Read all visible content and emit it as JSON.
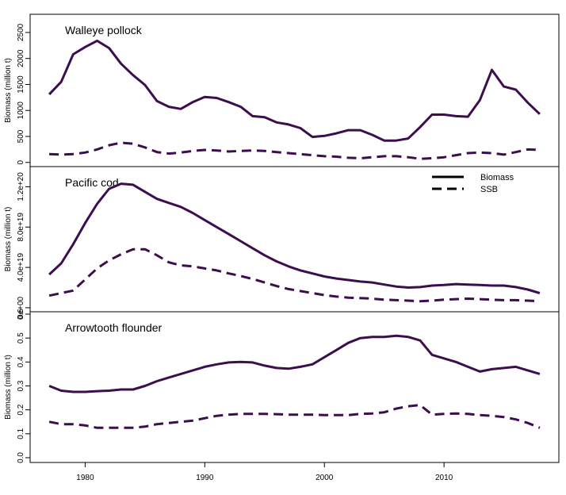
{
  "colors": {
    "line": "#3d0e4f",
    "frame": "#000000"
  },
  "legend": {
    "position": "top-right",
    "entries": [
      "Biomass",
      "SSB"
    ]
  },
  "chart_data": [
    {
      "type": "line",
      "title": "Walleye pollock",
      "ylabel": "Biomass (million t)",
      "ylim": [
        -80,
        2850
      ],
      "yticks": [
        0,
        500,
        1000,
        1500,
        2000,
        2500
      ],
      "ytick_labels": [
        "0",
        "500",
        "1000",
        "1500",
        "2000",
        "2500"
      ],
      "x": [
        1977,
        1978,
        1979,
        1980,
        1981,
        1982,
        1983,
        1984,
        1985,
        1986,
        1987,
        1988,
        1989,
        1990,
        1991,
        1992,
        1993,
        1994,
        1995,
        1996,
        1997,
        1998,
        1999,
        2000,
        2001,
        2002,
        2003,
        2004,
        2005,
        2006,
        2007,
        2008,
        2009,
        2010,
        2011,
        2012,
        2013,
        2014,
        2015,
        2016,
        2017,
        2018
      ],
      "series": [
        {
          "name": "Biomass",
          "dash": "solid",
          "values": [
            1310,
            1550,
            2080,
            2220,
            2340,
            2200,
            1900,
            1680,
            1490,
            1180,
            1070,
            1030,
            1160,
            1260,
            1240,
            1160,
            1070,
            890,
            870,
            770,
            730,
            660,
            490,
            510,
            560,
            620,
            620,
            530,
            420,
            420,
            460,
            680,
            920,
            920,
            890,
            880,
            1200,
            1780,
            1460,
            1400,
            1150,
            930
          ]
        },
        {
          "name": "SSB",
          "dash": "dashed",
          "values": [
            160,
            150,
            160,
            190,
            250,
            330,
            380,
            360,
            290,
            200,
            170,
            190,
            220,
            240,
            230,
            210,
            220,
            230,
            220,
            200,
            180,
            160,
            140,
            120,
            110,
            90,
            80,
            100,
            120,
            120,
            100,
            70,
            80,
            100,
            140,
            180,
            190,
            180,
            150,
            200,
            250,
            240
          ]
        }
      ]
    },
    {
      "type": "line",
      "title": "Pacific cod",
      "ylabel": "Biomass (million t)",
      "ylim": [
        -4e+18,
        1.4e+20
      ],
      "yticks": [
        0,
        4e+19,
        8e+19,
        1.2e+20
      ],
      "ytick_labels": [
        "0e+00",
        "4.0e+19",
        "8.0e+19",
        "1.2e+20"
      ],
      "x": [
        1977,
        1978,
        1979,
        1980,
        1981,
        1982,
        1983,
        1984,
        1985,
        1986,
        1987,
        1988,
        1989,
        1990,
        1991,
        1992,
        1993,
        1994,
        1995,
        1996,
        1997,
        1998,
        1999,
        2000,
        2001,
        2002,
        2003,
        2004,
        2005,
        2006,
        2007,
        2008,
        2009,
        2010,
        2011,
        2012,
        2013,
        2014,
        2015,
        2016,
        2017,
        2018
      ],
      "series": [
        {
          "name": "Biomass",
          "dash": "solid",
          "values": [
            3.3e+19,
            4.4e+19,
            6.3e+19,
            8.4e+19,
            1.03e+20,
            1.18e+20,
            1.23e+20,
            1.22e+20,
            1.15e+20,
            1.08e+20,
            1.04e+20,
            1e+20,
            9.4e+19,
            8.7e+19,
            8e+19,
            7.3e+19,
            6.6e+19,
            5.9e+19,
            5.2e+19,
            4.6e+19,
            4.1e+19,
            3.7e+19,
            3.4e+19,
            3.1e+19,
            2.9e+19,
            2.75e+19,
            2.6e+19,
            2.5e+19,
            2.3e+19,
            2.1e+19,
            2e+19,
            2.05e+19,
            2.2e+19,
            2.25e+19,
            2.35e+19,
            2.3e+19,
            2.25e+19,
            2.2e+19,
            2.2e+19,
            2.05e+19,
            1.8e+19,
            1.45e+19
          ]
        },
        {
          "name": "SSB",
          "dash": "dashed",
          "values": [
            1.2e+19,
            1.45e+19,
            1.7e+19,
            2.8e+19,
            3.9e+19,
            4.7e+19,
            5.3e+19,
            5.8e+19,
            5.8e+19,
            5.2e+19,
            4.5e+19,
            4.2e+19,
            4.1e+19,
            3.9e+19,
            3.7e+19,
            3.4e+19,
            3.15e+19,
            2.85e+19,
            2.5e+19,
            2.15e+19,
            1.85e+19,
            1.65e+19,
            1.45e+19,
            1.25e+19,
            1.1e+19,
            1e+19,
            9.5e+18,
            9e+18,
            8e+18,
            7.5e+18,
            7e+18,
            6.5e+18,
            7e+18,
            8e+18,
            8.5e+18,
            9e+18,
            8.5e+18,
            8e+18,
            7.5e+18,
            7.5e+18,
            7e+18,
            6.5e+18
          ]
        }
      ]
    },
    {
      "type": "line",
      "title": "Arrowtooth flounder",
      "ylabel": "Biomass (million t)",
      "ylim": [
        -0.02,
        0.61
      ],
      "yticks": [
        0,
        0.1,
        0.2,
        0.3,
        0.4,
        0.5,
        0.6
      ],
      "ytick_labels": [
        "0.0",
        "0.1",
        "0.2",
        "0.3",
        "0.4",
        "0.5",
        "0.6"
      ],
      "x": [
        1977,
        1978,
        1979,
        1980,
        1981,
        1982,
        1983,
        1984,
        1985,
        1986,
        1987,
        1988,
        1989,
        1990,
        1991,
        1992,
        1993,
        1994,
        1995,
        1996,
        1997,
        1998,
        1999,
        2000,
        2001,
        2002,
        2003,
        2004,
        2005,
        2006,
        2007,
        2008,
        2009,
        2010,
        2011,
        2012,
        2013,
        2014,
        2015,
        2016,
        2017,
        2018
      ],
      "series": [
        {
          "name": "Biomass",
          "dash": "solid",
          "values": [
            0.3,
            0.28,
            0.275,
            0.275,
            0.278,
            0.28,
            0.285,
            0.285,
            0.3,
            0.32,
            0.335,
            0.35,
            0.365,
            0.38,
            0.39,
            0.398,
            0.4,
            0.398,
            0.385,
            0.375,
            0.372,
            0.38,
            0.39,
            0.42,
            0.45,
            0.48,
            0.5,
            0.505,
            0.505,
            0.51,
            0.505,
            0.49,
            0.43,
            0.415,
            0.4,
            0.38,
            0.36,
            0.37,
            0.375,
            0.38,
            0.365,
            0.35
          ]
        },
        {
          "name": "SSB",
          "dash": "dashed",
          "values": [
            0.15,
            0.14,
            0.14,
            0.135,
            0.125,
            0.125,
            0.125,
            0.125,
            0.13,
            0.14,
            0.145,
            0.15,
            0.155,
            0.165,
            0.175,
            0.18,
            0.183,
            0.183,
            0.183,
            0.182,
            0.18,
            0.18,
            0.18,
            0.178,
            0.178,
            0.178,
            0.183,
            0.185,
            0.19,
            0.205,
            0.215,
            0.22,
            0.18,
            0.183,
            0.185,
            0.183,
            0.178,
            0.175,
            0.17,
            0.16,
            0.145,
            0.125
          ]
        }
      ]
    }
  ],
  "x_axis": {
    "ticks": [
      1980,
      1990,
      2000,
      2010
    ],
    "tick_labels": [
      "1980",
      "1990",
      "2000",
      "2010"
    ],
    "xlim": [
      1975.4,
      2019.6
    ]
  }
}
